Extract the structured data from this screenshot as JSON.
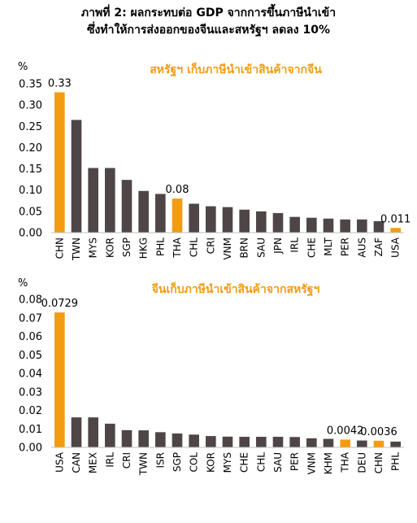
{
  "title_line1": "ภาพที่ 2: ผลกระทบต่อ GDP จากการขึ้นภาษีนำเข้า",
  "title_line2": "ซึ่งทำให้การส่งออกของจีนและสหรัฐฯ ลดลง 10%",
  "colors": {
    "default": "#4e4546",
    "highlight": "#f39c12",
    "subtitle": "#f39c12"
  },
  "chart_data": [
    {
      "type": "bar",
      "title": "สหรัฐฯ เก็บภาษีนำเข้าสินค้าจากจีน",
      "ylabel": "%",
      "ylim": [
        0,
        0.35
      ],
      "yticks": [
        "0.00",
        "0.05",
        "0.10",
        "0.15",
        "0.20",
        "0.25",
        "0.30",
        "0.35"
      ],
      "grid": false,
      "categories": [
        "CHN",
        "TWN",
        "MYS",
        "KOR",
        "SGP",
        "HKG",
        "PHL",
        "THA",
        "CHL",
        "CRI",
        "VNM",
        "BRN",
        "SAU",
        "JPN",
        "IRL",
        "CHE",
        "MLT",
        "PER",
        "AUS",
        "ZAF",
        "USA"
      ],
      "values": [
        0.33,
        0.265,
        0.152,
        0.152,
        0.124,
        0.098,
        0.091,
        0.08,
        0.068,
        0.062,
        0.06,
        0.054,
        0.05,
        0.046,
        0.037,
        0.035,
        0.033,
        0.031,
        0.031,
        0.027,
        0.011
      ],
      "highlight": [
        "CHN",
        "THA",
        "USA"
      ],
      "data_labels": [
        {
          "category": "CHN",
          "text": "0.33"
        },
        {
          "category": "THA",
          "text": "0.08"
        },
        {
          "category": "USA",
          "text": "0.011"
        }
      ]
    },
    {
      "type": "bar",
      "title": "จีนเก็บภาษีนำเข้าสินค้าจากสหรัฐฯ",
      "ylabel": "%",
      "ylim": [
        0,
        0.08
      ],
      "yticks": [
        "0.00",
        "0.01",
        "0.02",
        "0.03",
        "0.04",
        "0.05",
        "0.06",
        "0.07",
        "0.08"
      ],
      "grid": false,
      "categories": [
        "USA",
        "CAN",
        "MEX",
        "IRL",
        "CRI",
        "TWN",
        "ISR",
        "SGP",
        "COL",
        "KOR",
        "MYS",
        "CHE",
        "CHL",
        "SAU",
        "PER",
        "VNM",
        "KHM",
        "THA",
        "DEU",
        "CHN",
        "PHL"
      ],
      "values": [
        0.0729,
        0.0162,
        0.0162,
        0.0128,
        0.0093,
        0.0092,
        0.0082,
        0.0075,
        0.0069,
        0.0061,
        0.0058,
        0.0057,
        0.0057,
        0.0057,
        0.0056,
        0.0049,
        0.0046,
        0.0042,
        0.0037,
        0.0036,
        0.0031
      ],
      "highlight": [
        "USA",
        "THA",
        "CHN"
      ],
      "data_labels": [
        {
          "category": "USA",
          "text": "0.0729"
        },
        {
          "category": "THA",
          "text": "0.0042"
        },
        {
          "category": "CHN",
          "text": "0.0036"
        }
      ]
    }
  ]
}
